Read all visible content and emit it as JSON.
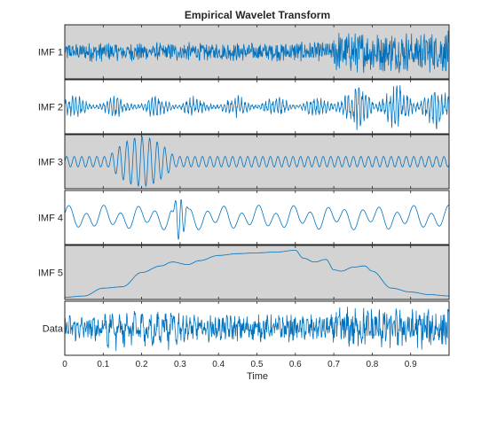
{
  "chart_data": {
    "type": "line",
    "title": "Empirical Wavelet Transform",
    "xlabel": "Time",
    "xlim": [
      0,
      1
    ],
    "x_ticks": [
      "0",
      "0.1",
      "0.2",
      "0.3",
      "0.4",
      "0.5",
      "0.6",
      "0.7",
      "0.8",
      "0.9"
    ],
    "grid": false,
    "line_color": "#0072BD",
    "stacked_panels": [
      {
        "name": "IMF 1",
        "background": "#d3d3d3",
        "description_values": {
          "amplitude_before_0_7": 0.35,
          "amplitude_after_0_7": 0.75
        }
      },
      {
        "name": "IMF 2",
        "background": "#ffffff",
        "description_values": {
          "amplitude_before_0_7": 0.4,
          "amplitude_after_0_7": 0.85
        }
      },
      {
        "name": "IMF 3",
        "background": "#d3d3d3",
        "description_values": {
          "burst_start": 0.1,
          "burst_end": 0.3,
          "burst_amplitude": 0.95,
          "base_amplitude": 0.2
        }
      },
      {
        "name": "IMF 4",
        "background": "#ffffff",
        "description_values": {
          "spike_time": 0.3,
          "amplitude": 0.45
        }
      },
      {
        "name": "IMF 5",
        "background": "#d3d3d3",
        "values_x": [
          0,
          0.05,
          0.1,
          0.15,
          0.2,
          0.25,
          0.28,
          0.32,
          0.35,
          0.4,
          0.45,
          0.5,
          0.55,
          0.6,
          0.62,
          0.65,
          0.68,
          0.7,
          0.72,
          0.75,
          0.78,
          0.8,
          0.85,
          0.9,
          0.95,
          1.0
        ],
        "values_y": [
          -0.95,
          -0.9,
          -0.6,
          -0.55,
          0.0,
          0.25,
          0.4,
          0.3,
          0.45,
          0.65,
          0.72,
          0.75,
          0.78,
          0.85,
          0.55,
          0.4,
          0.5,
          0.1,
          0.05,
          0.2,
          0.25,
          0.05,
          -0.6,
          -0.75,
          -0.85,
          -0.9
        ]
      },
      {
        "name": "Data",
        "background": "#ffffff",
        "description_values": {
          "amplitude_before_0_7": 0.55,
          "amplitude_after_0_7": 0.85
        }
      }
    ]
  }
}
